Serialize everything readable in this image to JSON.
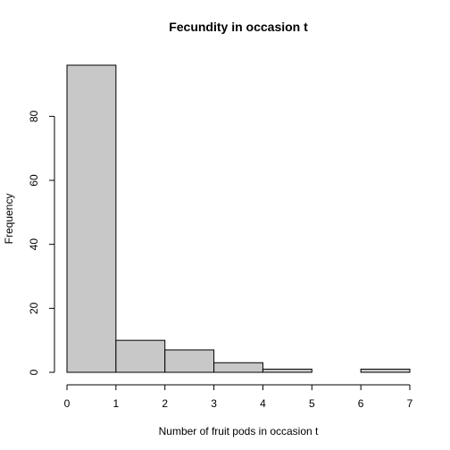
{
  "chart_data": {
    "type": "bar",
    "title": "Fecundity in occasion t",
    "xlabel": "Number of fruit pods in occasion t",
    "ylabel": "Frequency",
    "bins": [
      {
        "from": 0,
        "to": 1,
        "count": 96
      },
      {
        "from": 1,
        "to": 2,
        "count": 10
      },
      {
        "from": 2,
        "to": 3,
        "count": 7
      },
      {
        "from": 3,
        "to": 4,
        "count": 3
      },
      {
        "from": 4,
        "to": 5,
        "count": 1
      },
      {
        "from": 5,
        "to": 6,
        "count": 0
      },
      {
        "from": 6,
        "to": 7,
        "count": 1
      }
    ],
    "xlim": [
      0,
      7
    ],
    "ylim": [
      0,
      96
    ],
    "x_ticks": [
      "0",
      "1",
      "2",
      "3",
      "4",
      "5",
      "6",
      "7"
    ],
    "y_ticks": [
      "0",
      "20",
      "40",
      "60",
      "80"
    ],
    "grid": false,
    "bar_color": "#c8c8c8"
  }
}
